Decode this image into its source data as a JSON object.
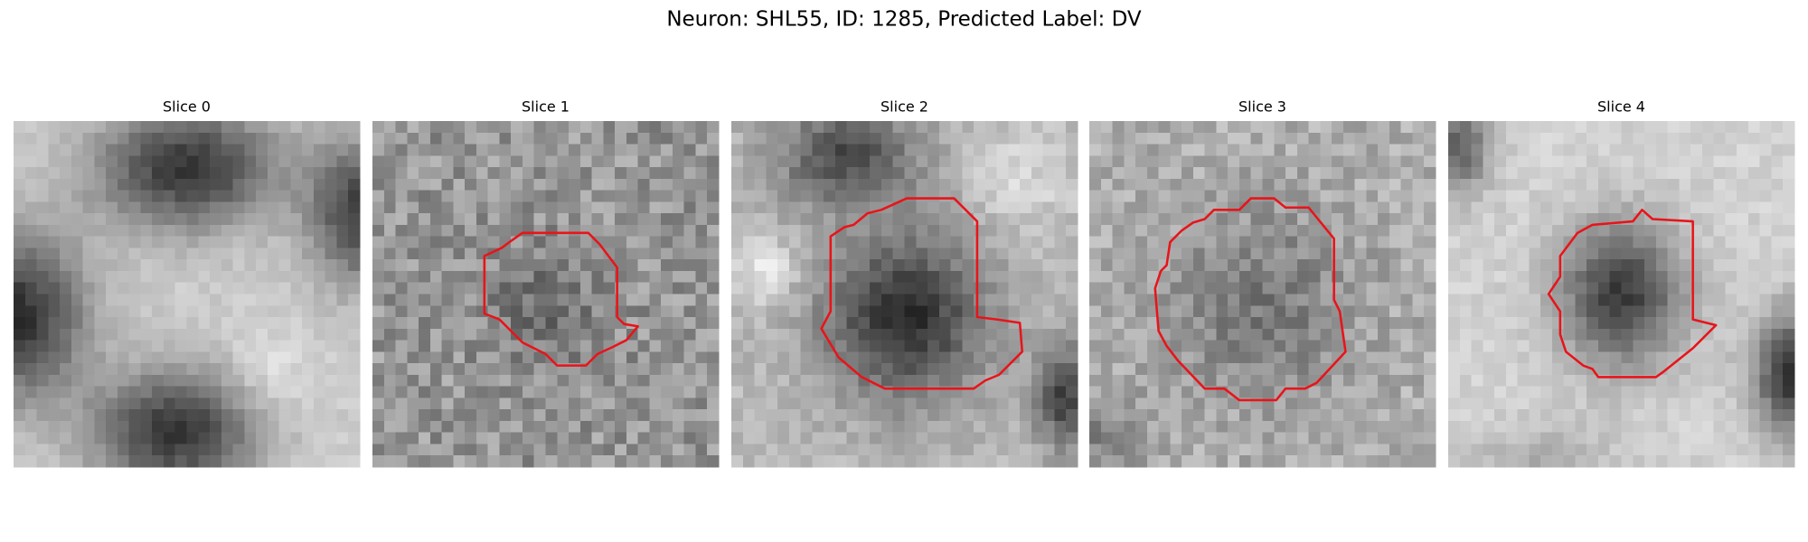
{
  "header": {
    "title": "Neuron: SHL55, ID: 1285, Predicted Label: DV"
  },
  "panels": [
    {
      "title": "Slice 0"
    },
    {
      "title": "Slice 1"
    },
    {
      "title": "Slice 2"
    },
    {
      "title": "Slice 3"
    },
    {
      "title": "Slice 4"
    }
  ]
}
